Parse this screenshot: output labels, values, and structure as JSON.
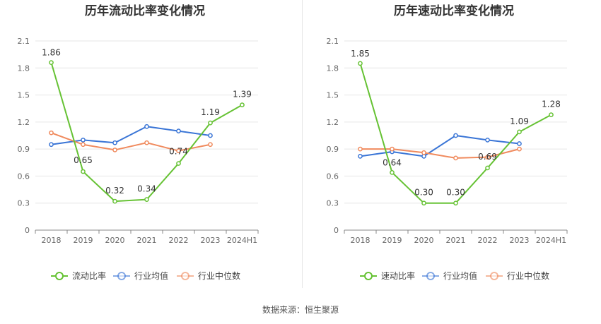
{
  "source_label": "数据来源：恒生聚源",
  "colors": {
    "green": "#66c234",
    "blue": "#3a75d6",
    "orange": "#f08a5d",
    "grid": "#e6e6e6",
    "axis": "#666666"
  },
  "chart_data": [
    {
      "type": "line",
      "title": "历年流动比率变化情况",
      "categories": [
        "2018",
        "2019",
        "2020",
        "2021",
        "2022",
        "2023",
        "2024H1"
      ],
      "ylim": [
        0,
        2.1
      ],
      "yticks": [
        0,
        0.3,
        0.6,
        0.9,
        1.2,
        1.5,
        1.8,
        2.1
      ],
      "grid": true,
      "legend_position": "bottom",
      "series": [
        {
          "name": "流动比率",
          "color": "#66c234",
          "values": [
            1.86,
            0.65,
            0.32,
            0.34,
            0.74,
            1.19,
            1.39
          ],
          "labels": [
            "1.86",
            "0.65",
            "0.32",
            "0.34",
            "0.74",
            "1.19",
            "1.39"
          ]
        },
        {
          "name": "行业均值",
          "color": "#3a75d6",
          "values": [
            0.95,
            1.0,
            0.97,
            1.15,
            1.1,
            1.05,
            null
          ]
        },
        {
          "name": "行业中位数",
          "color": "#f08a5d",
          "values": [
            1.08,
            0.95,
            0.89,
            0.97,
            0.88,
            0.95,
            null
          ]
        }
      ]
    },
    {
      "type": "line",
      "title": "历年速动比率变化情况",
      "categories": [
        "2018",
        "2019",
        "2020",
        "2021",
        "2022",
        "2023",
        "2024H1"
      ],
      "ylim": [
        0,
        2.1
      ],
      "yticks": [
        0,
        0.3,
        0.6,
        0.9,
        1.2,
        1.5,
        1.8,
        2.1
      ],
      "grid": true,
      "legend_position": "bottom",
      "series": [
        {
          "name": "速动比率",
          "color": "#66c234",
          "values": [
            1.85,
            0.64,
            0.3,
            0.3,
            0.69,
            1.09,
            1.28
          ],
          "labels": [
            "1.85",
            "0.64",
            "0.30",
            "0.30",
            "0.69",
            "1.09",
            "1.28"
          ]
        },
        {
          "name": "行业均值",
          "color": "#3a75d6",
          "values": [
            0.82,
            0.87,
            0.82,
            1.05,
            1.0,
            0.96,
            null
          ]
        },
        {
          "name": "行业中位数",
          "color": "#f08a5d",
          "values": [
            0.9,
            0.9,
            0.86,
            0.8,
            0.81,
            0.9,
            null
          ]
        }
      ]
    }
  ]
}
